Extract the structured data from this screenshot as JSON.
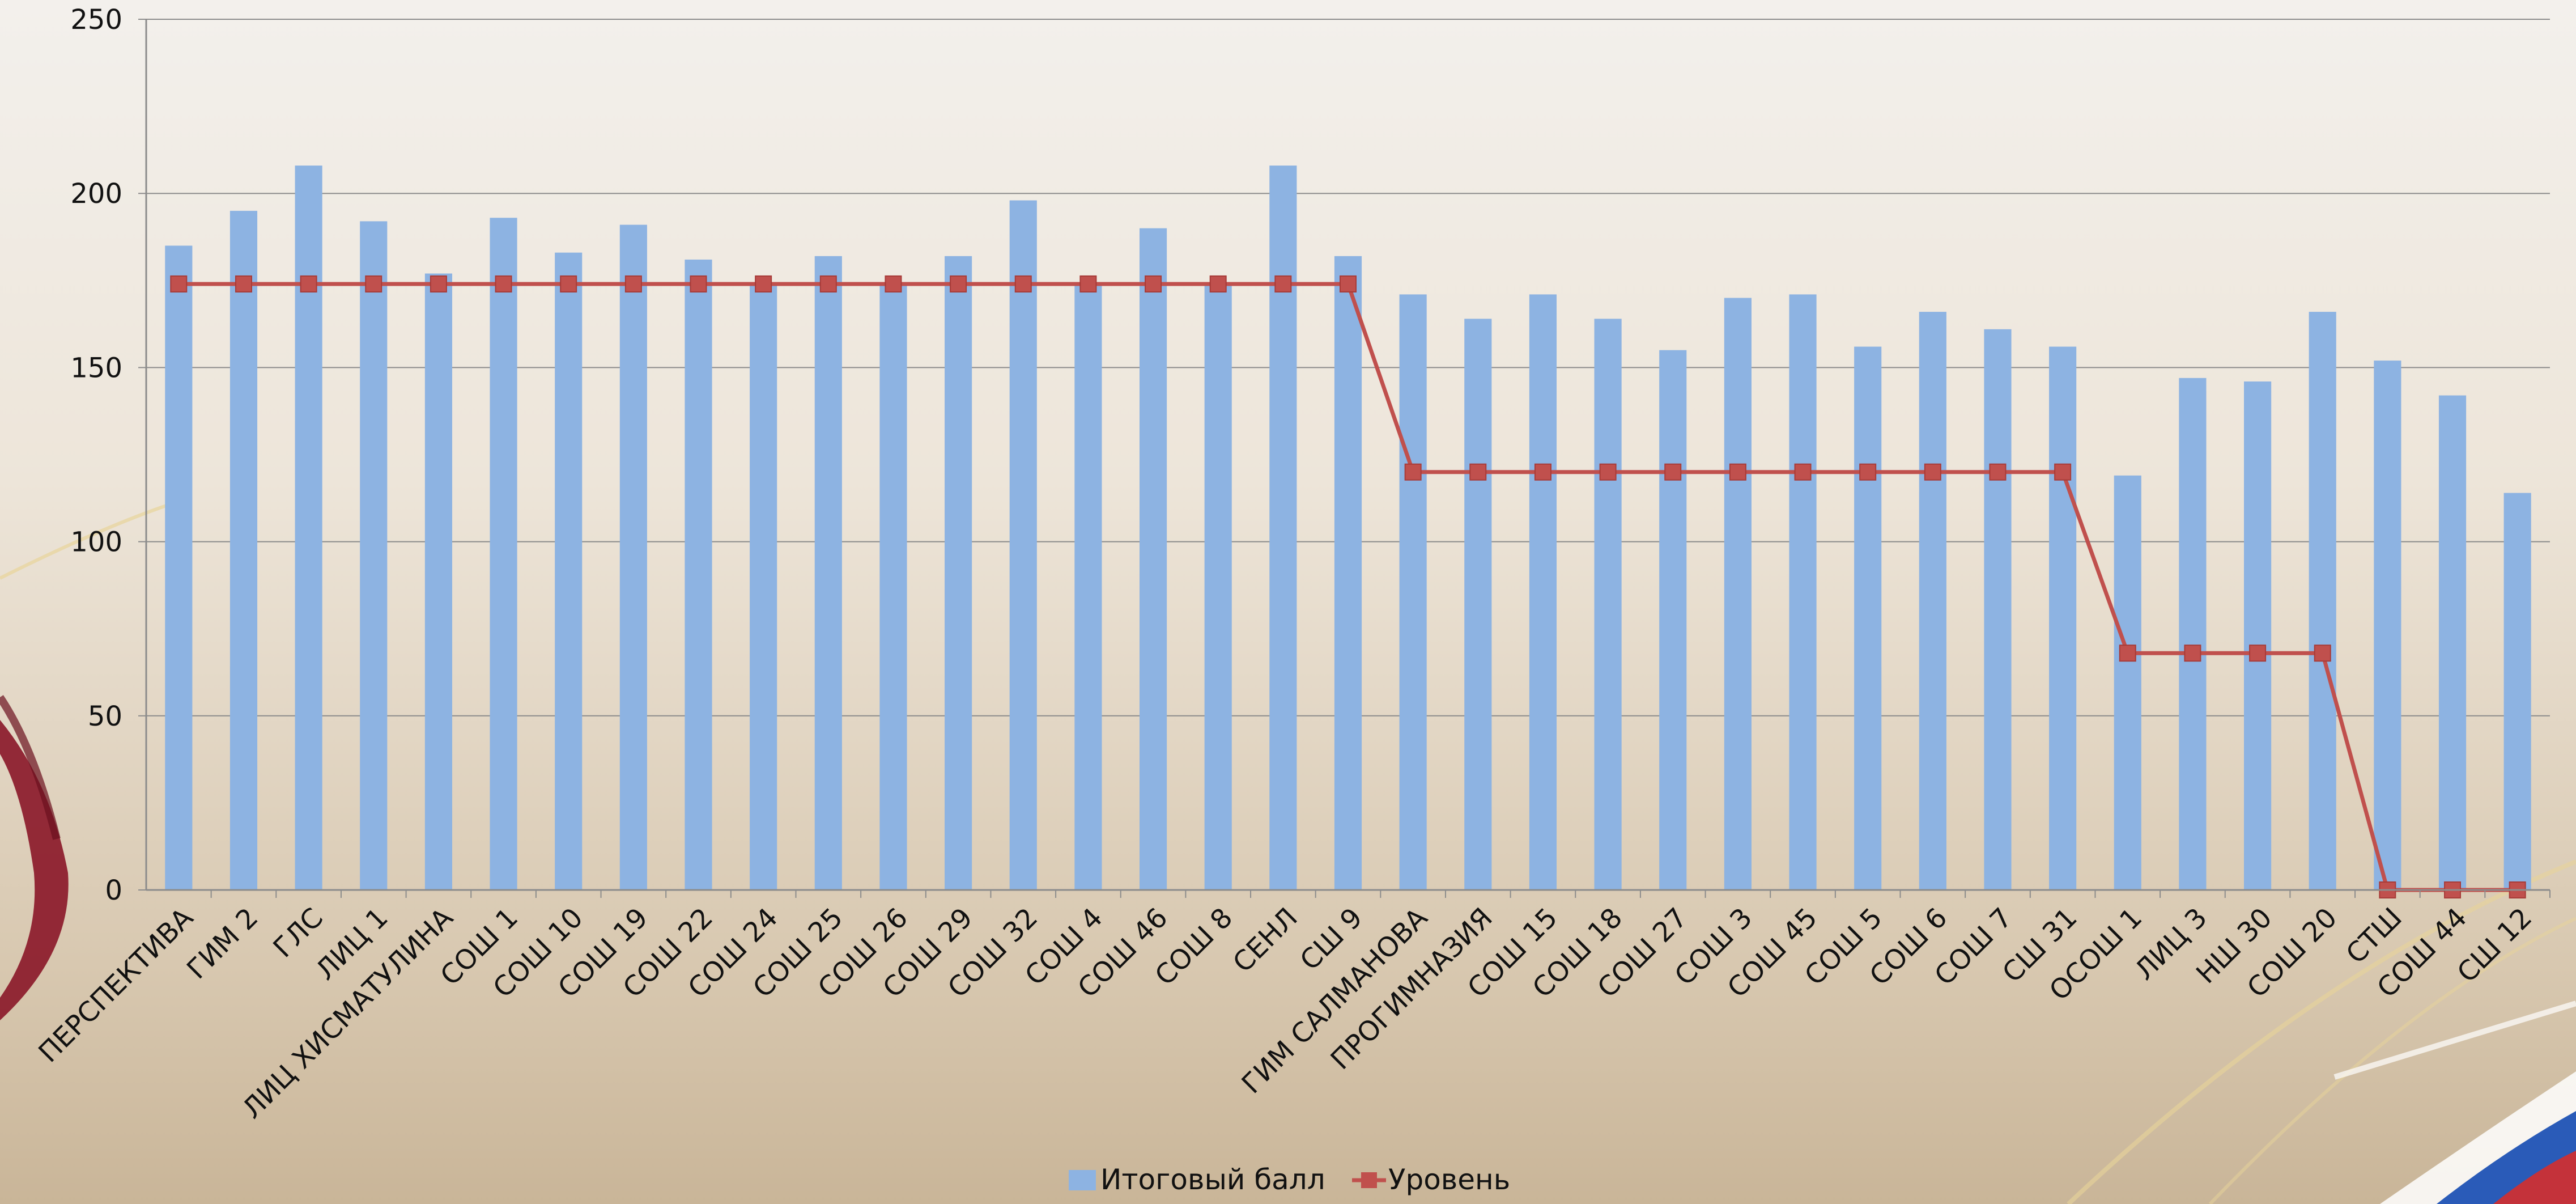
{
  "chart_data": {
    "type": "bar",
    "categories": [
      "ПЕРСПЕКТИВА",
      "ГИМ 2",
      "ГЛС",
      "ЛИЦ 1",
      "ЛИЦ ХИСМАТУЛИНА",
      "СОШ 1",
      "СОШ 10",
      "СОШ 19",
      "СОШ 22",
      "СОШ 24",
      "СОШ 25",
      "СОШ 26",
      "СОШ 29",
      "СОШ 32",
      "СОШ 4",
      "СОШ 46",
      "СОШ 8",
      "СЕНЛ",
      "СШ 9",
      "ГИМ САЛМАНОВА",
      "ПРОГИМНАЗИЯ",
      "СОШ 15",
      "СОШ 18",
      "СОШ 27",
      "СОШ 3",
      "СОШ 45",
      "СОШ 5",
      "СОШ 6",
      "СОШ 7",
      "СШ 31",
      "ОСОШ 1",
      "ЛИЦ 3",
      "НШ 30",
      "СОШ 20",
      "СТШ",
      "СОШ 44",
      "СШ 12"
    ],
    "series": [
      {
        "name": "Итоговый балл",
        "type": "bar",
        "color": "#8db3e2",
        "values": [
          185,
          195,
          208,
          192,
          177,
          193,
          183,
          191,
          181,
          174,
          182,
          174,
          182,
          198,
          174,
          190,
          174,
          208,
          182,
          171,
          164,
          171,
          164,
          155,
          170,
          171,
          156,
          166,
          161,
          156,
          119,
          147,
          146,
          166,
          152,
          142,
          114
        ]
      },
      {
        "name": "Уровень",
        "type": "line",
        "color": "#c0504d",
        "values": [
          174,
          174,
          174,
          174,
          174,
          174,
          174,
          174,
          174,
          174,
          174,
          174,
          174,
          174,
          174,
          174,
          174,
          174,
          174,
          120,
          120,
          120,
          120,
          120,
          120,
          120,
          120,
          120,
          120,
          120,
          68,
          68,
          68,
          68,
          0,
          0,
          0
        ]
      }
    ],
    "ylim": [
      0,
      250
    ],
    "yticks": [
      "0",
      "50",
      "100",
      "150",
      "200",
      "250"
    ],
    "grid": true,
    "legend_position": "bottom-center"
  }
}
